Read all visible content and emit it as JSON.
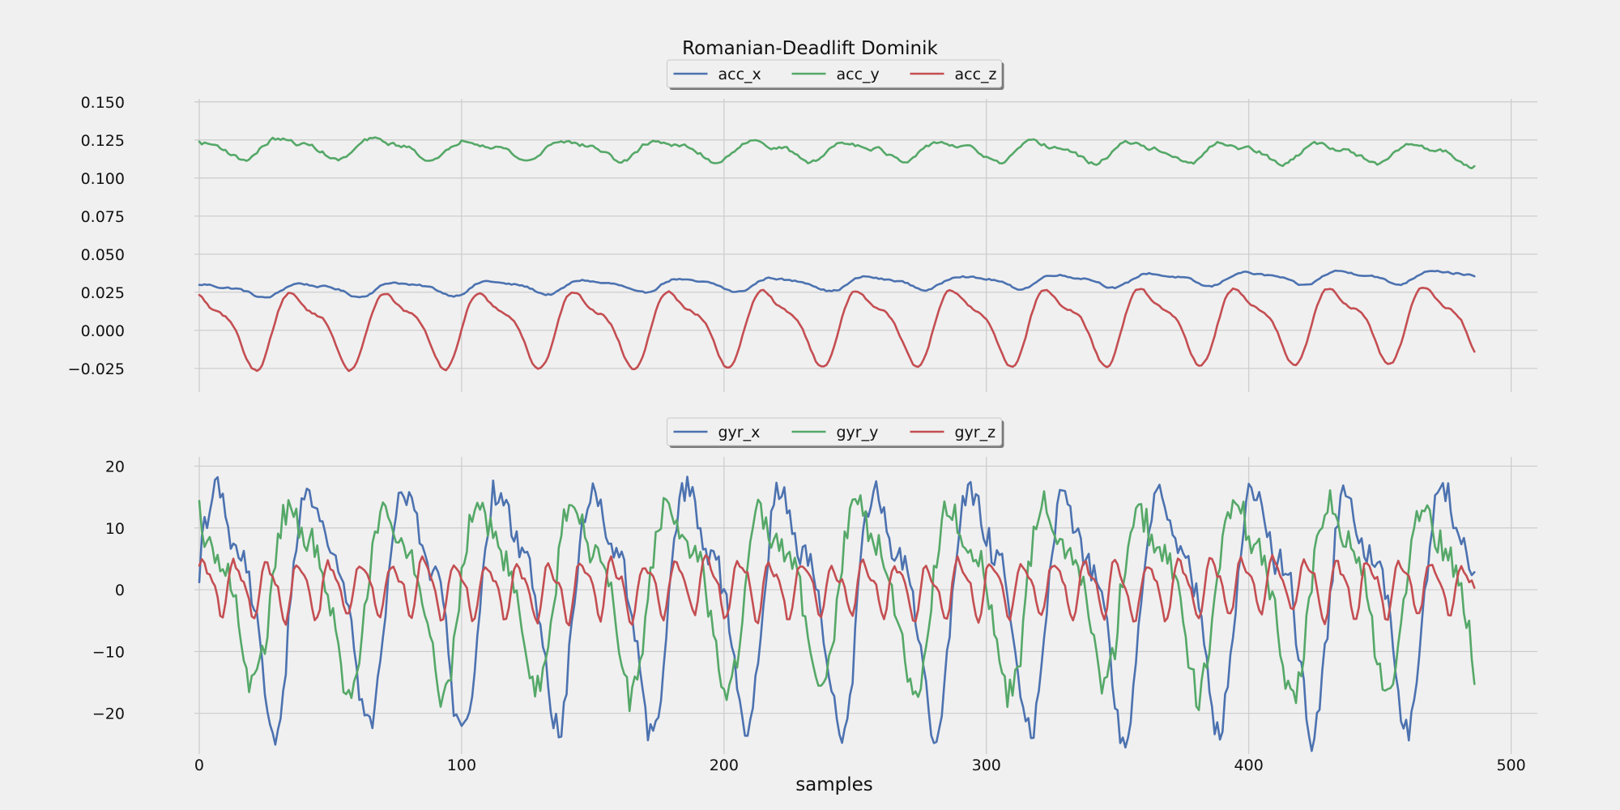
{
  "chart_data": [
    {
      "type": "line",
      "title": "Romanian-Deadlift Dominik",
      "xlabel": "",
      "ylabel": "",
      "xlim": [
        -25,
        510
      ],
      "ylim": [
        -0.032,
        0.152
      ],
      "x_ticks": [
        0,
        100,
        200,
        300,
        400,
        500
      ],
      "y_ticks": [
        -0.025,
        0.0,
        0.025,
        0.05,
        0.075,
        0.1,
        0.125,
        0.15
      ],
      "y_tick_labels": [
        "−0.025",
        "0.000",
        "0.025",
        "0.050",
        "0.075",
        "0.100",
        "0.125",
        "0.150"
      ],
      "grid": true,
      "legend_position": "top-center",
      "samples": 487,
      "series": [
        {
          "name": "acc_x",
          "color": "#4c72b0",
          "base": 0.026,
          "trend": 0.01,
          "amp": 0.004,
          "period": 36,
          "phase": 0.6,
          "noise": 0.0015
        },
        {
          "name": "acc_y",
          "color": "#55a868",
          "base": 0.12,
          "trend": -0.004,
          "amp": 0.006,
          "period": 36,
          "phase": 2.0,
          "noise": 0.003
        },
        {
          "name": "acc_z",
          "color": "#c44e52",
          "base": 0.002,
          "trend": 0.004,
          "amp": 0.022,
          "period": 36,
          "phase": 1.2,
          "noise": 0.002
        }
      ]
    },
    {
      "type": "line",
      "title": "",
      "xlabel": "samples",
      "ylabel": "",
      "xlim": [
        -25,
        510
      ],
      "ylim": [
        -24.5,
        21.5
      ],
      "x_ticks": [
        0,
        100,
        200,
        300,
        400,
        500
      ],
      "y_ticks": [
        -20,
        -10,
        0,
        10,
        20
      ],
      "y_tick_labels": [
        "−20",
        "−10",
        "0",
        "10",
        "20"
      ],
      "grid": true,
      "legend_position": "top-center",
      "samples": 487,
      "series": [
        {
          "name": "gyr_x",
          "color": "#4c72b0",
          "base": -1.0,
          "trend": 0,
          "amp": 17,
          "period": 36,
          "phase": 0.0,
          "noise": 3.0
        },
        {
          "name": "gyr_y",
          "color": "#55a868",
          "base": 0.5,
          "trend": 0,
          "amp": 13,
          "period": 36,
          "phase": 1.3,
          "noise": 3.0
        },
        {
          "name": "gyr_z",
          "color": "#c44e52",
          "base": 0.5,
          "trend": 0,
          "amp": 4,
          "period": 12,
          "phase": 0.4,
          "noise": 2.0
        }
      ]
    }
  ]
}
